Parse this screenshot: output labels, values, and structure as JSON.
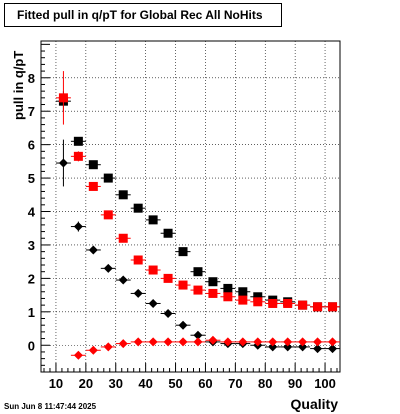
{
  "title": "Fitted pull in q/pT for Global Rec All NoHits",
  "ylabel": "pull in q/pT",
  "xlabel": "Quality",
  "footer": "Sun Jun  8 11:47:44 2025",
  "colors": {
    "black": "#000000",
    "red": "#ff0000"
  },
  "chart_data": {
    "type": "scatter",
    "title": "Fitted pull in q/pT for Global Rec All NoHits",
    "xlabel": "Quality",
    "ylabel": "pull in q/pT",
    "xlim": [
      5,
      105
    ],
    "ylim": [
      -0.8,
      9.1
    ],
    "grid": true,
    "xticks": [
      10,
      20,
      30,
      40,
      50,
      60,
      70,
      80,
      90,
      100
    ],
    "yticks": [
      0,
      1,
      2,
      3,
      4,
      5,
      6,
      7,
      8
    ],
    "series": [
      {
        "marker": "square",
        "color": "#000000",
        "x": [
          12.5,
          17.5,
          22.5,
          27.5,
          32.5,
          37.5,
          42.5,
          47.5,
          52.5,
          57.5,
          62.5,
          67.5,
          72.5,
          77.5,
          82.5,
          87.5,
          92.5,
          97.5,
          102.5
        ],
        "y": [
          7.3,
          6.1,
          5.4,
          5.0,
          4.5,
          4.1,
          3.75,
          3.35,
          2.8,
          2.2,
          1.9,
          1.7,
          1.6,
          1.45,
          1.35,
          1.3,
          1.2,
          1.15,
          1.15
        ],
        "yerr": [
          0.3,
          0.1,
          0.05,
          0.05,
          0.05,
          0.05,
          0.05,
          0.05,
          0.05,
          0.05,
          0.05,
          0.05,
          0.05,
          0.05,
          0.05,
          0.05,
          0.05,
          0.05,
          0.05
        ]
      },
      {
        "marker": "square",
        "color": "#ff0000",
        "x": [
          12.5,
          17.5,
          22.5,
          27.5,
          32.5,
          37.5,
          42.5,
          47.5,
          52.5,
          57.5,
          62.5,
          67.5,
          72.5,
          77.5,
          82.5,
          87.5,
          92.5,
          97.5,
          102.5
        ],
        "y": [
          7.4,
          5.65,
          4.75,
          3.9,
          3.2,
          2.55,
          2.25,
          2.0,
          1.8,
          1.65,
          1.55,
          1.45,
          1.35,
          1.3,
          1.25,
          1.25,
          1.2,
          1.15,
          1.15
        ],
        "yerr": [
          0.8,
          0.15,
          0.05,
          0.05,
          0.05,
          0.05,
          0.05,
          0.05,
          0.05,
          0.05,
          0.05,
          0.05,
          0.05,
          0.05,
          0.05,
          0.05,
          0.05,
          0.05,
          0.05
        ]
      },
      {
        "marker": "diamond",
        "color": "#000000",
        "x": [
          12.5,
          17.5,
          22.5,
          27.5,
          32.5,
          37.5,
          42.5,
          47.5,
          52.5,
          57.5,
          62.5,
          67.5,
          72.5,
          77.5,
          82.5,
          87.5,
          92.5,
          97.5,
          102.5
        ],
        "y": [
          5.45,
          3.55,
          2.85,
          2.3,
          1.95,
          1.55,
          1.25,
          0.95,
          0.6,
          0.3,
          0.1,
          0.05,
          0.05,
          0.0,
          -0.05,
          -0.05,
          -0.05,
          -0.1,
          -0.1
        ],
        "yerr": [
          0.7,
          0.15,
          0.05,
          0.05,
          0.05,
          0.05,
          0.05,
          0.05,
          0.05,
          0.05,
          0.05,
          0.05,
          0.05,
          0.05,
          0.05,
          0.05,
          0.05,
          0.05,
          0.05
        ]
      },
      {
        "marker": "diamond",
        "color": "#ff0000",
        "x": [
          17.5,
          22.5,
          27.5,
          32.5,
          37.5,
          42.5,
          47.5,
          52.5,
          57.5,
          62.5,
          67.5,
          72.5,
          77.5,
          82.5,
          87.5,
          92.5,
          97.5,
          102.5
        ],
        "y": [
          -0.3,
          -0.15,
          -0.05,
          0.05,
          0.1,
          0.1,
          0.1,
          0.1,
          0.1,
          0.15,
          0.1,
          0.1,
          0.1,
          0.1,
          0.1,
          0.1,
          0.1,
          0.1
        ],
        "yerr": [
          0.08,
          0.05,
          0.05,
          0.05,
          0.05,
          0.05,
          0.05,
          0.05,
          0.05,
          0.05,
          0.05,
          0.05,
          0.05,
          0.05,
          0.05,
          0.05,
          0.05,
          0.05
        ]
      }
    ]
  }
}
